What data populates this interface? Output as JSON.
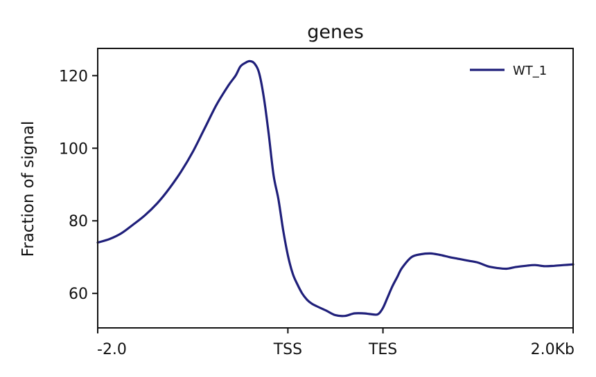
{
  "chart_data": {
    "type": "line",
    "title": "genes",
    "xlabel": "",
    "ylabel": "Fraction of signal",
    "xlim": [
      0,
      1
    ],
    "ylim": [
      50.5,
      127.5
    ],
    "yticks": [
      60,
      80,
      100,
      120
    ],
    "xticks": [
      {
        "x": 0.0,
        "label": "-2.0"
      },
      {
        "x": 0.4,
        "label": "TSS"
      },
      {
        "x": 0.6,
        "label": "TES"
      },
      {
        "x": 1.0,
        "label": "2.0Kb"
      }
    ],
    "grid": false,
    "legend_position": "top-right",
    "series": [
      {
        "name": "WT_1",
        "color": "#1f1f7a",
        "x": [
          0.0,
          0.025,
          0.05,
          0.075,
          0.1,
          0.125,
          0.15,
          0.175,
          0.2,
          0.225,
          0.25,
          0.275,
          0.29,
          0.3,
          0.31,
          0.32,
          0.33,
          0.34,
          0.35,
          0.36,
          0.37,
          0.38,
          0.39,
          0.4,
          0.41,
          0.42,
          0.43,
          0.44,
          0.45,
          0.46,
          0.48,
          0.5,
          0.52,
          0.54,
          0.56,
          0.58,
          0.59,
          0.6,
          0.61,
          0.62,
          0.63,
          0.64,
          0.66,
          0.68,
          0.7,
          0.72,
          0.74,
          0.76,
          0.78,
          0.8,
          0.82,
          0.84,
          0.86,
          0.88,
          0.9,
          0.92,
          0.94,
          0.96,
          0.98,
          1.0
        ],
        "values": [
          74.0,
          75.0,
          76.6,
          79.0,
          81.6,
          84.8,
          88.8,
          93.5,
          99.0,
          105.5,
          112.0,
          117.3,
          120.0,
          122.5,
          123.5,
          124.0,
          123.3,
          120.5,
          113.5,
          103.5,
          92.5,
          86.0,
          77.5,
          70.5,
          65.5,
          62.5,
          60.0,
          58.3,
          57.2,
          56.5,
          55.3,
          54.0,
          53.8,
          54.5,
          54.5,
          54.2,
          54.3,
          56.0,
          59.0,
          62.0,
          64.5,
          67.0,
          70.0,
          70.8,
          71.0,
          70.6,
          70.0,
          69.5,
          69.0,
          68.5,
          67.5,
          67.0,
          66.8,
          67.3,
          67.6,
          67.8,
          67.5,
          67.6,
          67.8,
          68.0
        ]
      }
    ]
  }
}
